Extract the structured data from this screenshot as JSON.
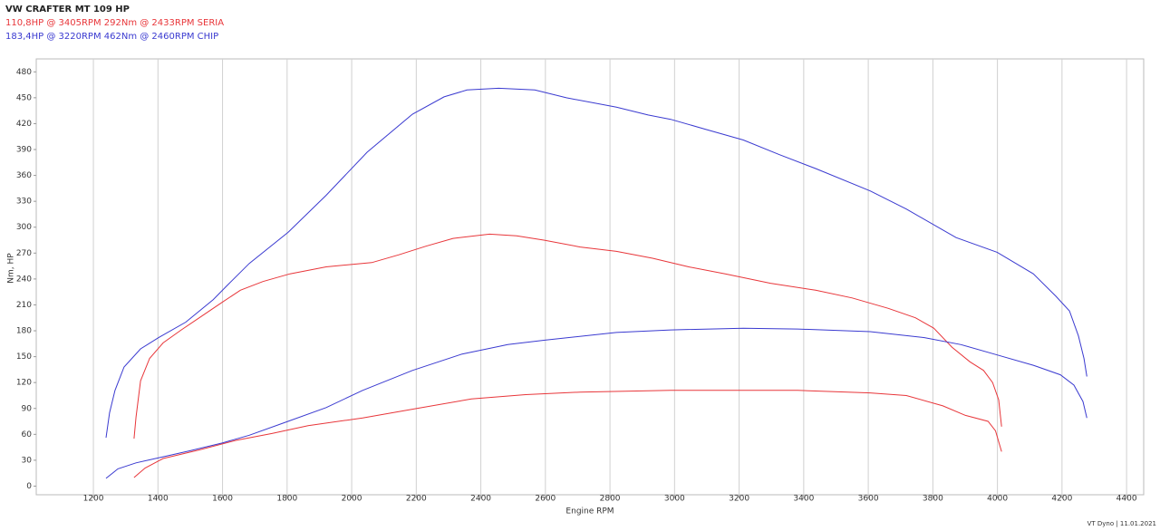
{
  "chart_data": {
    "type": "line",
    "title": "VW CRAFTER MT 109 HP",
    "legend": [
      "110,8HP @  3405RPM  292Nm @ 2433RPM  SERIA",
      "183,4HP @  3220RPM  462Nm @ 2460RPM  CHIP"
    ],
    "footer": "VT Dyno | 11.01.2021",
    "x_label": "Engine RPM",
    "y_label": "Nm, HP",
    "xlim": [
      1023,
      4453
    ],
    "ylim": [
      -10,
      495
    ],
    "xticks": [
      1200,
      1400,
      1600,
      1800,
      2000,
      2200,
      2400,
      2600,
      2800,
      3000,
      3200,
      3400,
      3600,
      3800,
      4000,
      4200,
      4400
    ],
    "yticks": [
      0,
      30,
      60,
      90,
      120,
      150,
      180,
      210,
      240,
      270,
      300,
      330,
      360,
      390,
      420,
      450,
      480
    ],
    "grid": "x",
    "series": [
      {
        "color": "#e8363a",
        "x": [
          1326,
          1332,
          1346,
          1374,
          1416,
          1472,
          1528,
          1599,
          1655,
          1725,
          1809,
          1921,
          2062,
          2146,
          2230,
          2314,
          2427,
          2511,
          2595,
          2708,
          2820,
          2932,
          3044,
          3157,
          3297,
          3437,
          3550,
          3662,
          3746,
          3803,
          3859,
          3915,
          3957,
          3985,
          4004,
          4013
        ],
        "values": [
          55,
          80,
          122,
          148,
          166,
          181,
          195,
          213,
          227,
          237,
          246,
          254,
          259,
          268,
          278,
          287,
          292,
          290,
          285,
          277,
          272,
          264,
          254,
          246,
          235,
          227,
          218,
          206,
          195,
          183,
          161,
          144,
          134,
          120,
          100,
          69
        ]
      },
      {
        "color": "#e8363a",
        "x": [
          1326,
          1360,
          1416,
          1528,
          1641,
          1753,
          1865,
          2034,
          2202,
          2371,
          2539,
          2708,
          2988,
          3381,
          3606,
          3718,
          3831,
          3901,
          3971,
          3994,
          4013
        ],
        "values": [
          10,
          21,
          32,
          42,
          53,
          61,
          70,
          79,
          90,
          101,
          106,
          109,
          111,
          111,
          108,
          105,
          93,
          82,
          75,
          64,
          40
        ]
      },
      {
        "color": "#3a3ad0",
        "x": [
          1239,
          1250,
          1267,
          1295,
          1346,
          1402,
          1486,
          1571,
          1613,
          1683,
          1803,
          1921,
          2048,
          2188,
          2286,
          2357,
          2455,
          2567,
          2665,
          2820,
          2918,
          2988,
          3100,
          3213,
          3325,
          3437,
          3606,
          3718,
          3872,
          3999,
          4111,
          4181,
          4223,
          4251,
          4268,
          4277
        ],
        "values": [
          56,
          85,
          111,
          138,
          159,
          172,
          190,
          216,
          232,
          258,
          294,
          337,
          387,
          431,
          451,
          459,
          461,
          459,
          450,
          439,
          430,
          425,
          413,
          401,
          384,
          368,
          342,
          321,
          288,
          271,
          246,
          220,
          203,
          174,
          148,
          127
        ]
      },
      {
        "color": "#3a3ad0",
        "x": [
          1239,
          1276,
          1332,
          1416,
          1500,
          1599,
          1683,
          1795,
          1921,
          2034,
          2188,
          2342,
          2483,
          2595,
          2820,
          2988,
          3213,
          3381,
          3606,
          3774,
          3887,
          3999,
          4111,
          4195,
          4237,
          4265,
          4277
        ],
        "values": [
          9,
          20,
          27,
          34,
          41,
          50,
          59,
          74,
          91,
          111,
          134,
          153,
          164,
          169,
          178,
          181,
          183,
          182,
          179,
          172,
          164,
          152,
          140,
          129,
          117,
          98,
          79
        ]
      }
    ]
  }
}
